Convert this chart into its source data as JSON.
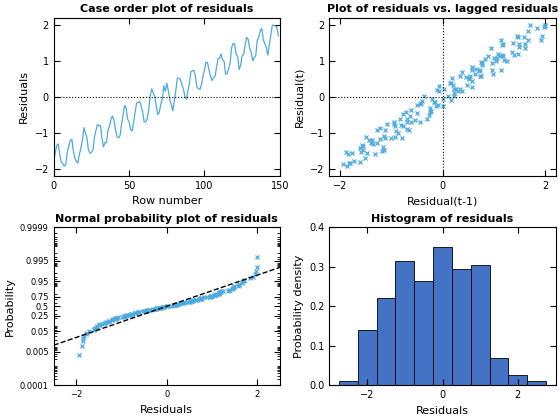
{
  "n": 150,
  "seed": 42,
  "fig_width": 5.6,
  "fig_height": 4.2,
  "dpi": 100,
  "line_color": "#4DAADF",
  "marker_color": "#4DAADF",
  "ref_line_color": "black",
  "hist_color": "#4472C4",
  "title1": "Case order plot of residuals",
  "xlabel1": "Row number",
  "ylabel1": "Residuals",
  "title2": "Plot of residuals vs. lagged residuals",
  "xlabel2": "Residual(t-1)",
  "ylabel2": "Residual(t)",
  "title3": "Normal probability plot of residuals",
  "xlabel3": "Residuals",
  "ylabel3": "Probability",
  "title4": "Histogram of residuals",
  "xlabel4": "Residuals",
  "ylabel4": "Probability density",
  "yticks_prob": [
    0.0001,
    0.005,
    0.05,
    0.25,
    0.5,
    0.75,
    0.95,
    0.995,
    0.9999
  ],
  "ytick_labels_prob": [
    "0.0001",
    "0.005",
    "0.05",
    "0.25",
    "0.5",
    "0.75",
    "0.95",
    "0.995",
    "0.9999"
  ],
  "background_color": "#ffffff",
  "hist_heights": [
    0.01,
    0.14,
    0.22,
    0.315,
    0.265,
    0.35,
    0.295,
    0.305,
    0.07,
    0.025,
    0.01
  ],
  "hist_edges": [
    -2.75,
    -2.25,
    -1.75,
    -1.25,
    -0.75,
    -0.25,
    0.25,
    0.75,
    1.25,
    1.75,
    2.25,
    2.75
  ]
}
